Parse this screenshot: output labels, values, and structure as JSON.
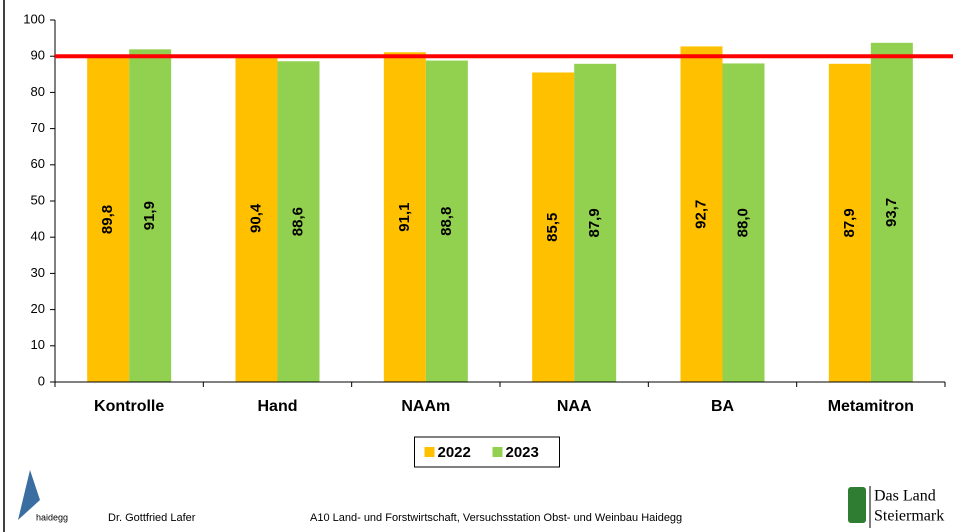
{
  "chart_data": {
    "type": "bar",
    "categories": [
      "Kontrolle",
      "Hand",
      "NAAm",
      "NAA",
      "BA",
      "Metamitron"
    ],
    "series": [
      {
        "name": "2022",
        "color": "#ffc000",
        "values": [
          89.8,
          90.4,
          91.1,
          85.5,
          92.7,
          87.9
        ],
        "value_labels": [
          "89,8",
          "90,4",
          "91,1",
          "85,5",
          "92,7",
          "87,9"
        ]
      },
      {
        "name": "2023",
        "color": "#92d050",
        "values": [
          91.9,
          88.6,
          88.8,
          87.9,
          88.0,
          93.7
        ],
        "value_labels": [
          "91,9",
          "88,6",
          "88,8",
          "87,9",
          "88,0",
          "93,7"
        ]
      }
    ],
    "ylim": [
      0,
      100
    ],
    "yticks": [
      0,
      10,
      20,
      30,
      40,
      50,
      60,
      70,
      80,
      90,
      100
    ],
    "reference_line": {
      "value": 90,
      "color": "#ff0000"
    },
    "legend": "bottom"
  },
  "footer": {
    "author": "Dr. Gottfried Lafer",
    "institution": "A10 Land- und Forstwirtschaft, Versuchsstation Obst- und Weinbau Haidegg",
    "logo_left": "haidegg",
    "logo_right": [
      "Das Land",
      "Steiermark"
    ]
  }
}
